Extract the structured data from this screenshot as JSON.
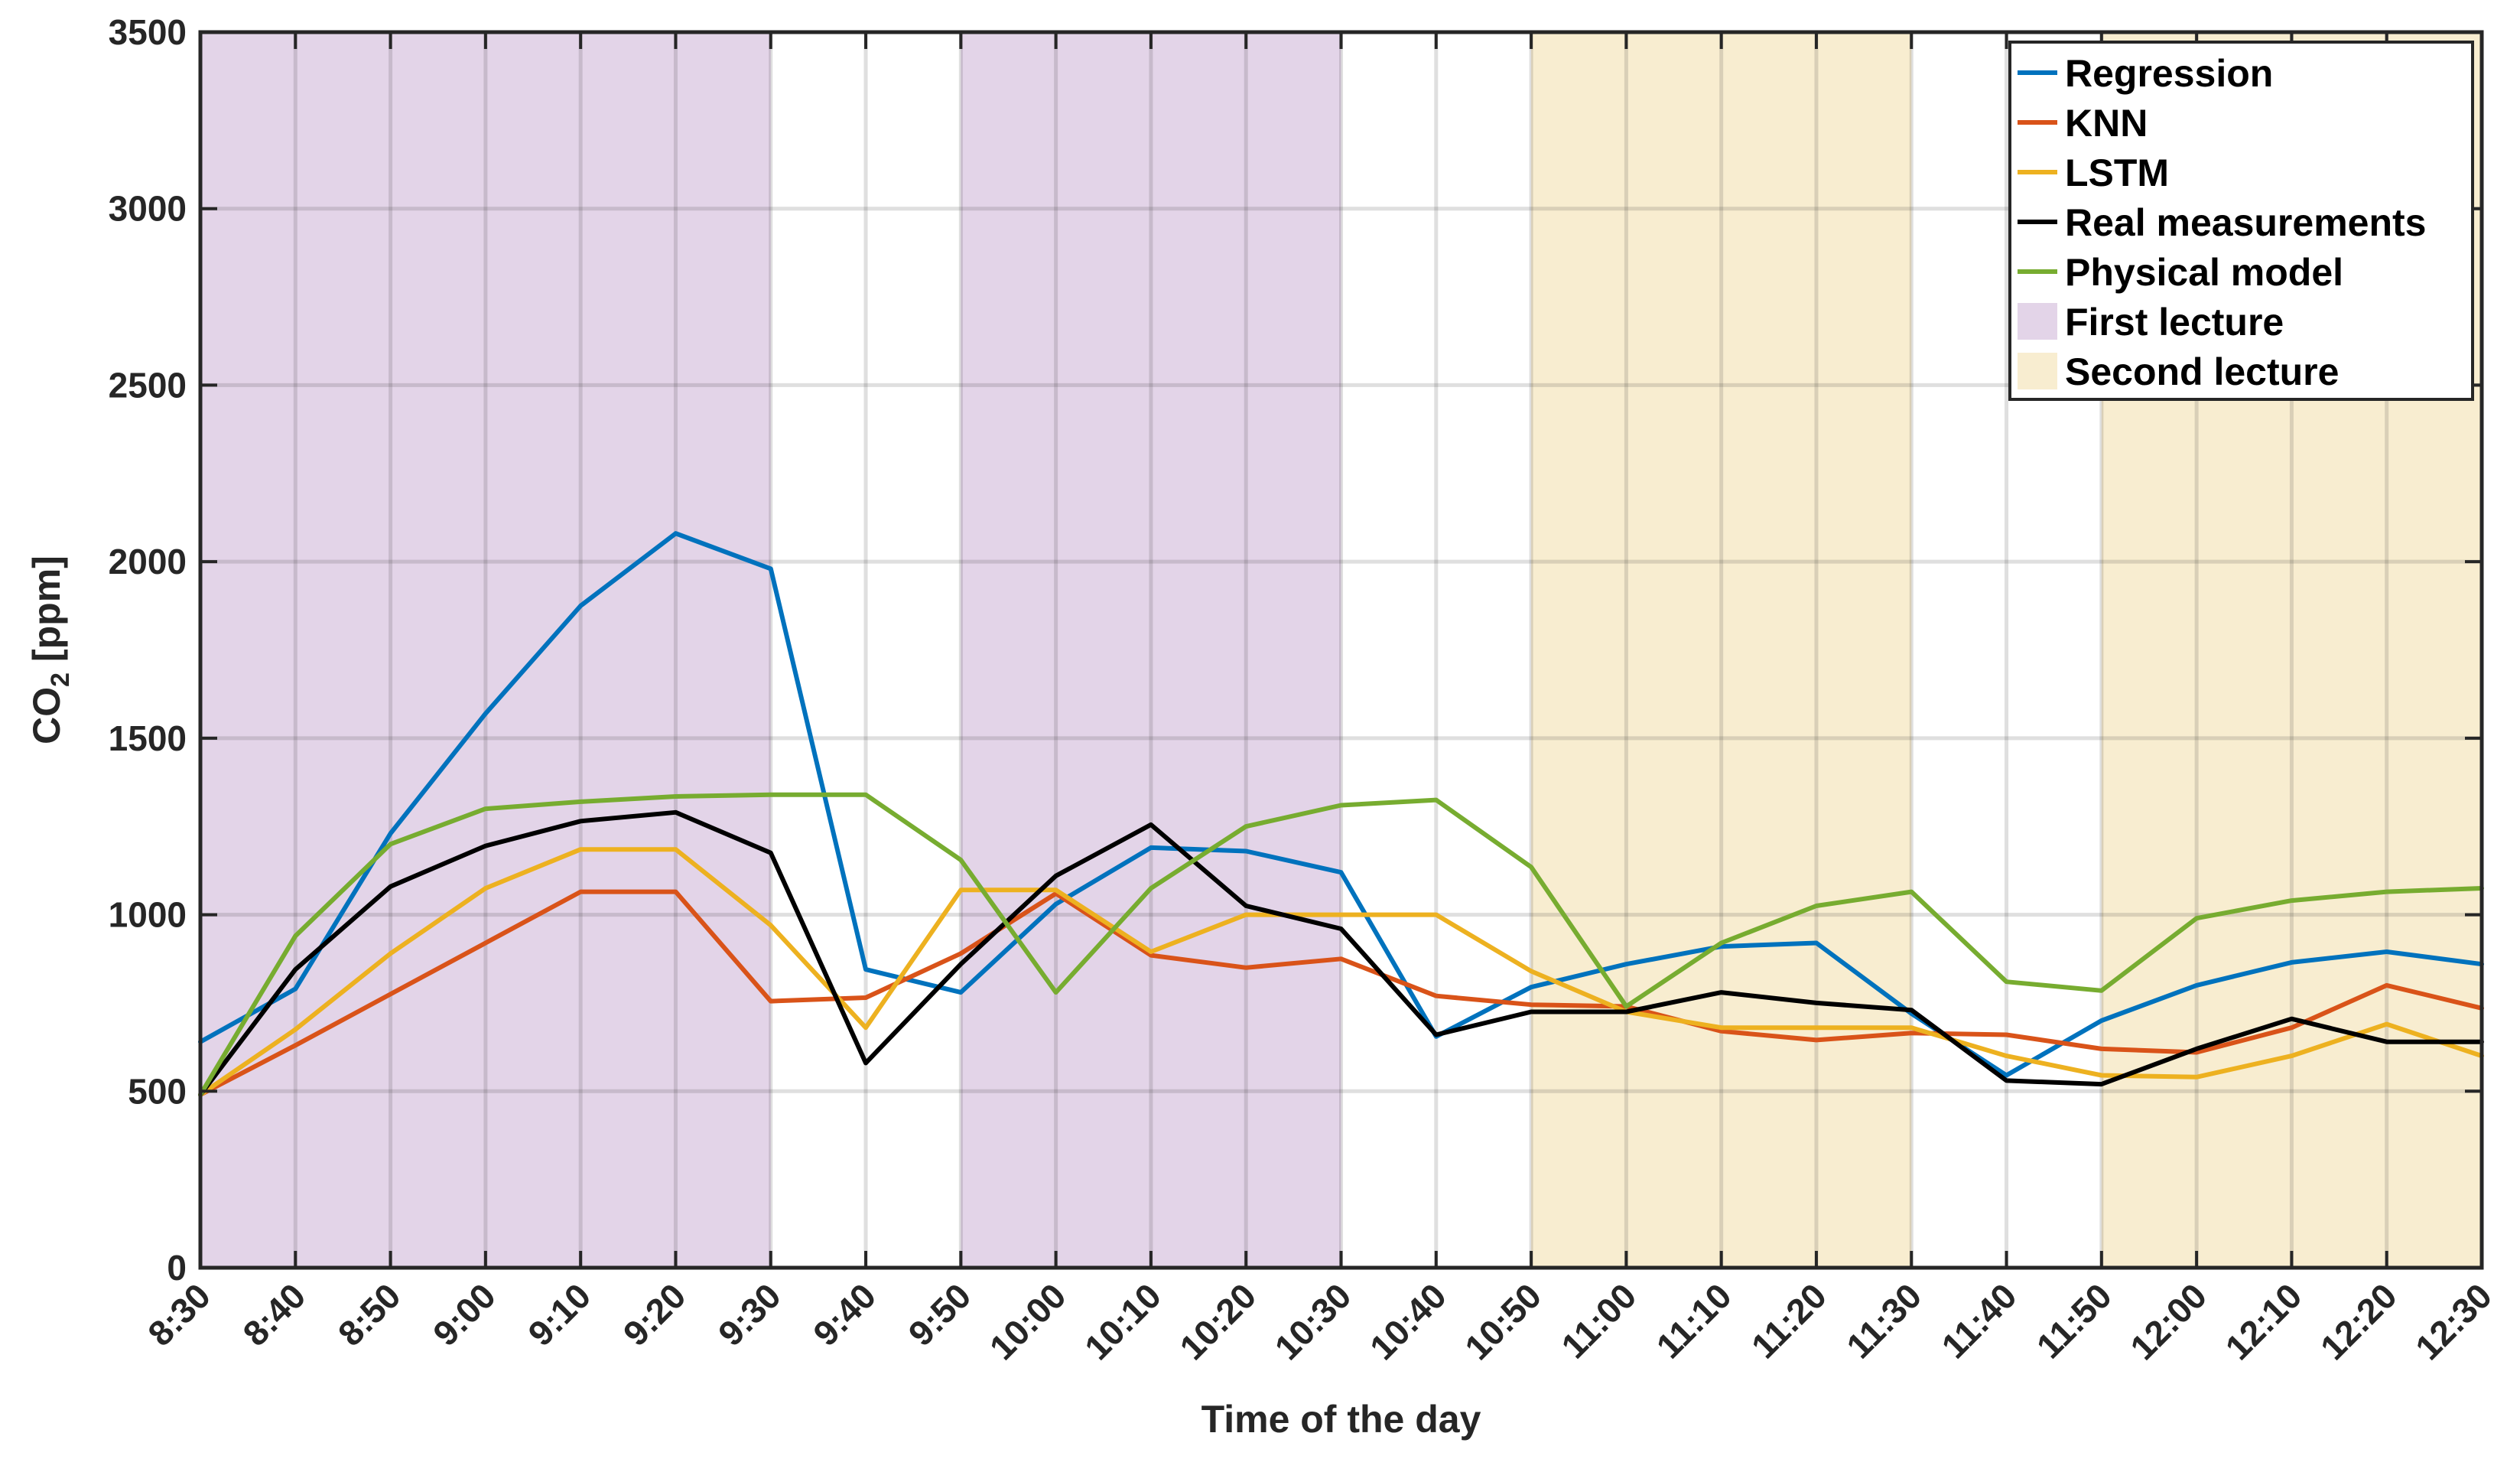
{
  "chart_data": {
    "type": "line",
    "xlabel": "Time of the day",
    "ylabel_main": "CO",
    "ylabel_sub": "2",
    "ylabel_unit": " [ppm]",
    "ylim": [
      0,
      3500
    ],
    "yticks": [
      0,
      500,
      1000,
      1500,
      2000,
      2500,
      3000,
      3500
    ],
    "grid": true,
    "legend_position": "top-right",
    "x": [
      "8:30",
      "8:40",
      "8:50",
      "9:00",
      "9:10",
      "9:20",
      "9:30",
      "9:40",
      "9:50",
      "10:00",
      "10:10",
      "10:20",
      "10:30",
      "10:40",
      "10:50",
      "11:00",
      "11:10",
      "11:20",
      "11:30",
      "11:40",
      "11:50",
      "12:00",
      "12:10",
      "12:20",
      "12:30"
    ],
    "series": [
      {
        "name": "Regression",
        "color": "#0072BD",
        "values": [
          640,
          790,
          1230,
          1570,
          1875,
          2080,
          1980,
          845,
          780,
          1030,
          1190,
          1180,
          1120,
          655,
          795,
          860,
          910,
          920,
          720,
          545,
          700,
          800,
          865,
          895,
          860
        ]
      },
      {
        "name": "KNN",
        "color": "#D95319",
        "values": [
          490,
          630,
          775,
          920,
          1065,
          1065,
          755,
          765,
          890,
          1060,
          885,
          850,
          875,
          770,
          745,
          740,
          670,
          645,
          665,
          660,
          620,
          610,
          680,
          800,
          735
        ]
      },
      {
        "name": "LSTM",
        "color": "#EDB120",
        "values": [
          490,
          675,
          890,
          1075,
          1185,
          1185,
          970,
          680,
          1070,
          1070,
          895,
          1000,
          1000,
          1000,
          840,
          725,
          680,
          680,
          680,
          600,
          545,
          540,
          600,
          690,
          600
        ]
      },
      {
        "name": "Real measurements",
        "color": "#000000",
        "values": [
          490,
          845,
          1080,
          1195,
          1265,
          1290,
          1175,
          580,
          860,
          1110,
          1255,
          1025,
          960,
          660,
          725,
          725,
          780,
          750,
          730,
          530,
          520,
          620,
          705,
          640,
          640
        ]
      },
      {
        "name": "Physical model",
        "color": "#77AC30",
        "values": [
          490,
          940,
          1200,
          1300,
          1320,
          1335,
          1340,
          1340,
          1155,
          780,
          1075,
          1250,
          1310,
          1325,
          1135,
          740,
          920,
          1025,
          1065,
          810,
          785,
          990,
          1040,
          1065,
          1075
        ]
      }
    ],
    "shaded_regions": [
      {
        "name": "First lecture",
        "color": "#E3D4E8",
        "ranges": [
          [
            "8:30",
            "9:30"
          ],
          [
            "9:50",
            "10:30"
          ]
        ]
      },
      {
        "name": "Second lecture",
        "color": "#F8EDD0",
        "ranges": [
          [
            "10:50",
            "11:30"
          ],
          [
            "11:50",
            "12:30"
          ]
        ]
      }
    ]
  }
}
